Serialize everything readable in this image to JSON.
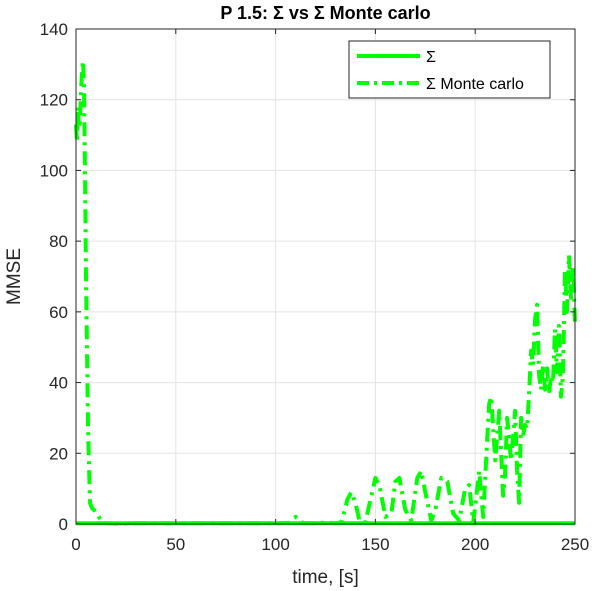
{
  "chart_data": {
    "type": "line",
    "title": "P 1.5: Σ vs Σ Monte carlo",
    "xlabel": "time, [s]",
    "ylabel": "MMSE",
    "xlim": [
      0,
      250
    ],
    "ylim": [
      0,
      140
    ],
    "xticks": [
      "0",
      "50",
      "100",
      "150",
      "200",
      "250"
    ],
    "yticks": [
      "0",
      "20",
      "40",
      "60",
      "80",
      "100",
      "120",
      "140"
    ],
    "grid": true,
    "legend_position": "top-right",
    "series": [
      {
        "name": "Σ",
        "style": "solid",
        "color": "#00ff00",
        "x": [
          0,
          250
        ],
        "y": [
          0.2,
          0.2
        ]
      },
      {
        "name": "Σ Monte carlo",
        "style": "dashdot",
        "color": "#00ff00",
        "x": [
          0,
          0.5,
          1,
          1.5,
          2,
          2.5,
          3,
          3.5,
          4,
          4.5,
          5,
          6,
          7,
          8,
          9,
          10,
          11,
          12,
          13,
          14,
          16,
          20,
          30,
          50,
          69,
          70,
          71,
          80,
          100,
          107,
          109,
          110,
          112,
          114,
          120,
          125,
          130,
          133,
          136,
          138,
          140,
          142,
          145,
          148,
          150,
          152,
          155,
          158,
          160,
          162,
          165,
          168,
          171,
          173,
          175,
          178,
          180,
          183,
          186,
          189,
          192,
          195,
          197,
          199,
          200,
          202,
          204,
          206,
          207,
          208,
          210,
          212,
          214,
          215,
          216,
          218,
          220,
          221,
          222,
          223,
          224,
          225,
          226,
          227,
          228,
          229,
          230,
          231,
          232,
          233,
          234,
          235,
          236,
          237,
          238,
          239,
          240,
          241,
          242,
          243,
          244,
          245,
          246,
          247,
          248,
          249,
          250
        ],
        "y": [
          113,
          108,
          118,
          112,
          114,
          122,
          128,
          131,
          124,
          100,
          70,
          28,
          6,
          4.5,
          4,
          3,
          2.5,
          1.5,
          0.8,
          0.3,
          0.2,
          0.1,
          0.2,
          0.2,
          0.2,
          0.8,
          0.2,
          0.2,
          0.2,
          0.3,
          1.5,
          2,
          1,
          0.2,
          0.2,
          0.4,
          0.2,
          0.5,
          7,
          9,
          6,
          1,
          0.5,
          8,
          13,
          11,
          2,
          3,
          12,
          13,
          4,
          1,
          13,
          15,
          9,
          1,
          4,
          13,
          12,
          3,
          1,
          10,
          11,
          0.5,
          5,
          15,
          2,
          24,
          34,
          36,
          18,
          32,
          8,
          14,
          30,
          18,
          32,
          15,
          6,
          30,
          25,
          28,
          27,
          37,
          49,
          45,
          58,
          62,
          42,
          38,
          45,
          38,
          44,
          37,
          42,
          40,
          55,
          43,
          56,
          36,
          42,
          72,
          60,
          76,
          64,
          73,
          57
        ]
      }
    ]
  }
}
